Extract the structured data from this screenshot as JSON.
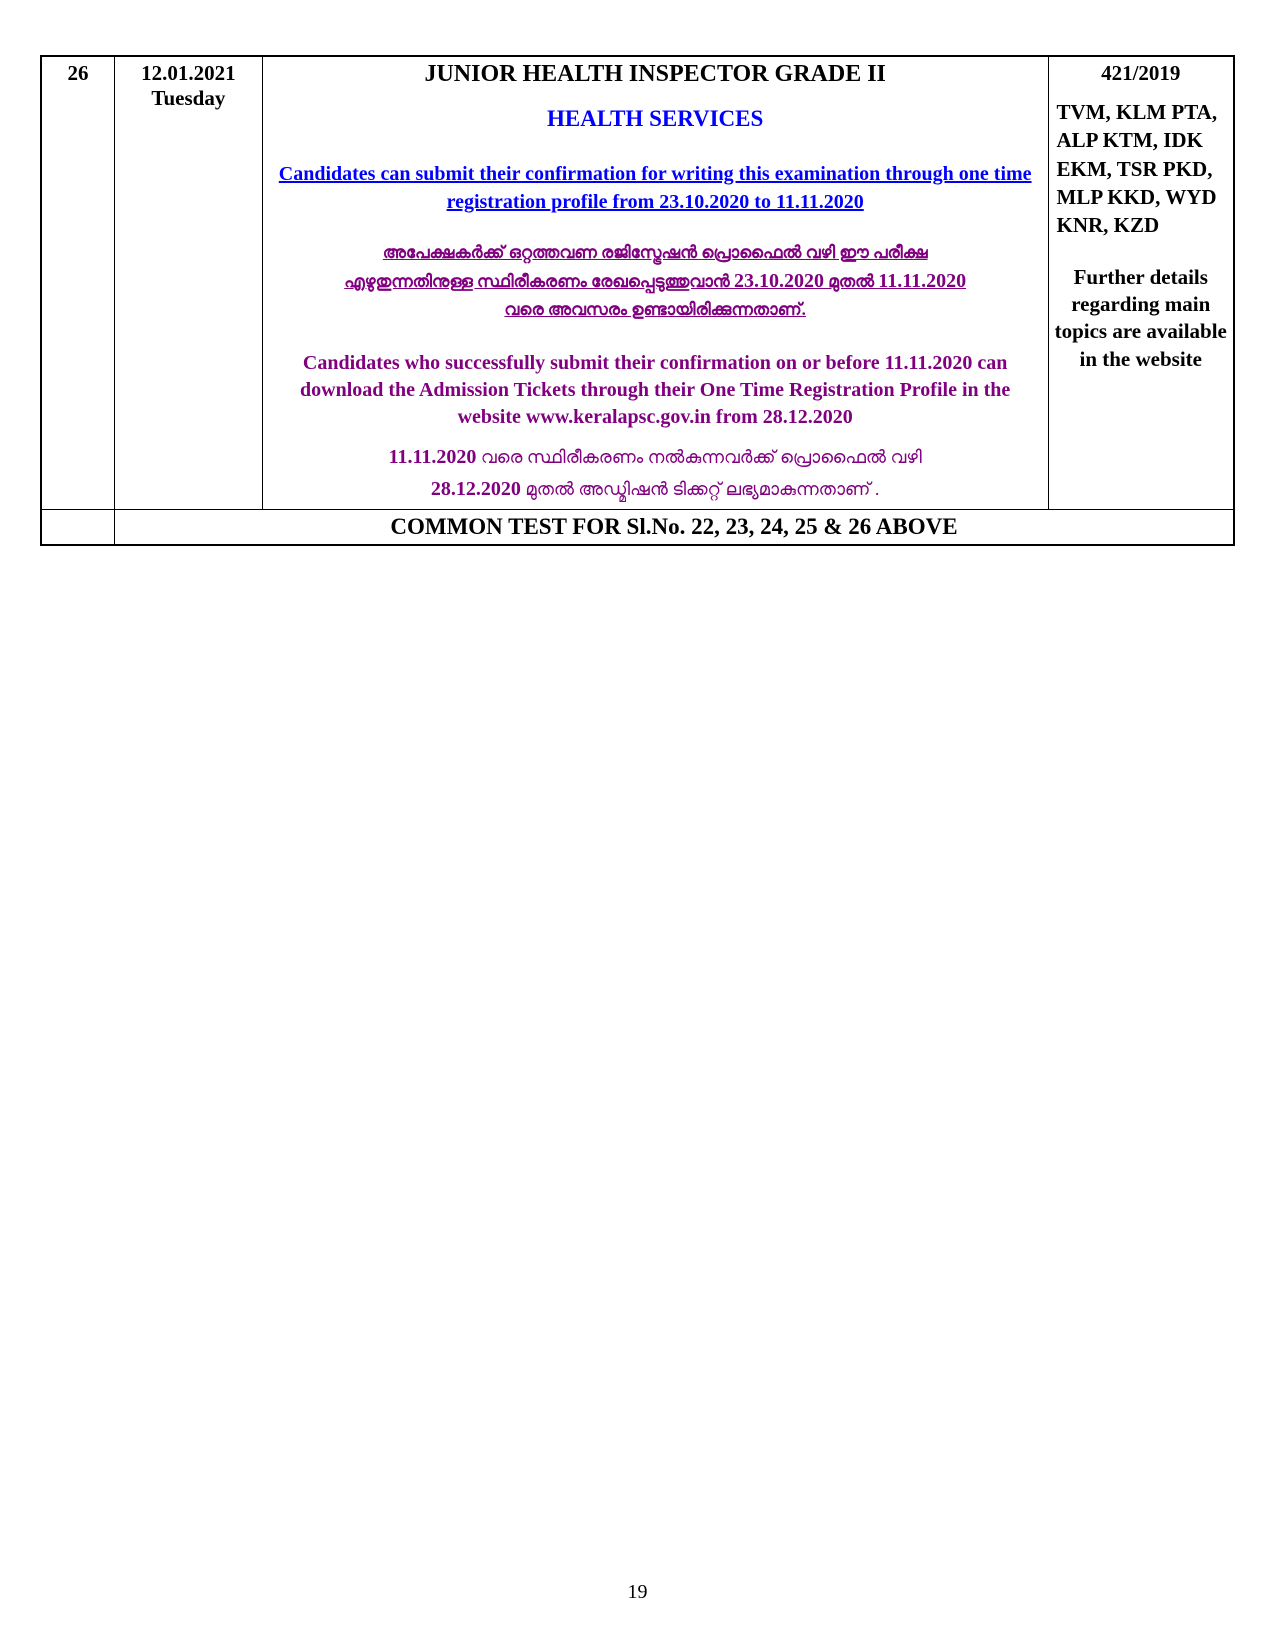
{
  "row1": {
    "num": "26",
    "date_line1": "12.01.2021",
    "date_line2": "Tuesday",
    "title": "JUNIOR HEALTH INSPECTOR GRADE II",
    "subtitle": "HEALTH SERVICES",
    "link_en": "Candidates can submit their confirmation for writing this examination through one time registration profile from 23.10.2020 to 11.11.2020",
    "ml_line1": "അപേക്ഷകർക്ക് ഒറ്റത്തവണ രജിസ്ട്രേഷൻ പ്രൊഫൈൽ വഴി ഈ പരീക്ഷ",
    "ml_line2_pre": "എഴുതുന്നതിനുള്ള സ്ഥിരീകരണം  രേഖപ്പെടുത്തുവാൻ ",
    "ml_line2_d1": "23.10.2020",
    "ml_line2_mid": " മുതൽ ",
    "ml_line2_d2": "11.11.2020",
    "ml_line3": "വരെ അവസരം ഉണ്ടായിരിക്കുന്നതാണ്.",
    "para_en": "Candidates who successfully submit their confirmation on or before 11.11.2020 can  download the Admission Tickets through their One Time Registration Profile in the  website www.keralapsc.gov.in from 28.12.2020",
    "ml2_d1": "11.11.2020",
    "ml2_part1": " വരെ സ്ഥിരീകരണം  നൽകുന്നവർക്ക് പ്രൊഫൈൽ വഴി",
    "ml2_d2": "28.12.2020",
    "ml2_part2": " മുതൽ അഡ്മിഷൻ ടിക്കറ്റ് ലഭ്യമാകുന്നതാണ് .",
    "ref": "421/2019",
    "districts": "TVM, KLM PTA, ALP KTM, IDK EKM, TSR PKD, MLP KKD, WYD KNR, KZD",
    "further": "Further details regarding main topics are available in the website"
  },
  "row2": {
    "text": "COMMON TEST FOR Sl.No.  22, 23,  24, 25 & 26  ABOVE"
  },
  "pagenum": "19"
}
